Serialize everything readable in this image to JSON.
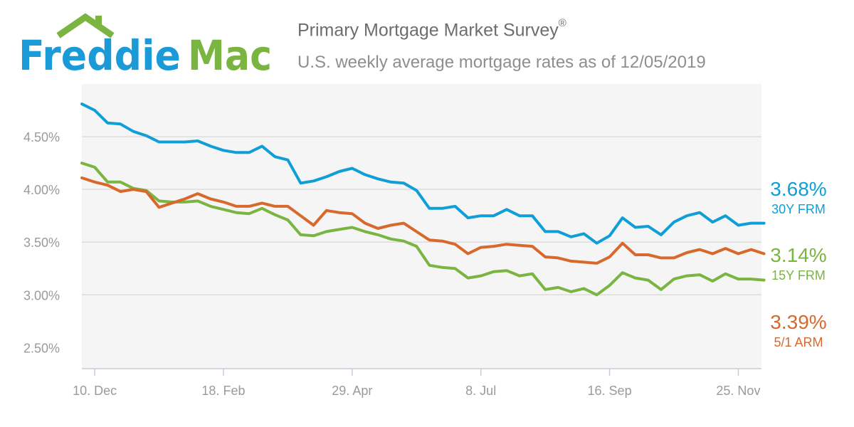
{
  "logo": {
    "text_part1": "Freddie",
    "text_part2": "Mac"
  },
  "header": {
    "title": "Primary Mortgage Market Survey",
    "title_mark": "®",
    "subtitle": "U.S. weekly average mortgage rates as of 12/05/2019"
  },
  "colors": {
    "frm30": "#0f9fd6",
    "frm15": "#7ab441",
    "arm51": "#d8692c",
    "logo_blue": "#1a9ad6",
    "logo_green": "#7ab441"
  },
  "right_labels": [
    {
      "value": "3.68%",
      "name": "30Y FRM",
      "color": "#0f9fd6"
    },
    {
      "value": "3.14%",
      "name": "15Y FRM",
      "color": "#7ab441"
    },
    {
      "value": "3.39%",
      "name": "5/1 ARM",
      "color": "#d8692c"
    }
  ],
  "chart_data": {
    "type": "line",
    "y_ticks": [
      "2.50%",
      "3.00%",
      "3.50%",
      "4.00%",
      "4.50%"
    ],
    "y_tick_values": [
      2.5,
      3.0,
      3.5,
      4.0,
      4.5
    ],
    "ylim": [
      2.3,
      5.0
    ],
    "x_ticks": [
      "10. Dec",
      "18. Feb",
      "29. Apr",
      "8. Jul",
      "16. Sep",
      "25. Nov"
    ],
    "x_tick_weeks": [
      1,
      11,
      21,
      31,
      41,
      51
    ],
    "xlim": [
      0,
      52.8
    ],
    "grid": true,
    "series": [
      {
        "name": "30Y FRM",
        "color": "#0f9fd6",
        "values": [
          4.81,
          4.75,
          4.63,
          4.62,
          4.55,
          4.51,
          4.45,
          4.45,
          4.45,
          4.46,
          4.41,
          4.37,
          4.35,
          4.35,
          4.41,
          4.31,
          4.28,
          4.06,
          4.08,
          4.12,
          4.17,
          4.2,
          4.14,
          4.1,
          4.07,
          4.06,
          3.99,
          3.82,
          3.82,
          3.84,
          3.73,
          3.75,
          3.75,
          3.81,
          3.75,
          3.75,
          3.6,
          3.6,
          3.55,
          3.58,
          3.49,
          3.56,
          3.73,
          3.64,
          3.65,
          3.57,
          3.69,
          3.75,
          3.78,
          3.69,
          3.75,
          3.66,
          3.68,
          3.68
        ]
      },
      {
        "name": "15Y FRM",
        "color": "#7ab441",
        "values": [
          4.25,
          4.21,
          4.07,
          4.07,
          4.01,
          3.99,
          3.89,
          3.88,
          3.88,
          3.89,
          3.84,
          3.81,
          3.78,
          3.77,
          3.82,
          3.76,
          3.71,
          3.57,
          3.56,
          3.6,
          3.62,
          3.64,
          3.6,
          3.57,
          3.53,
          3.51,
          3.46,
          3.28,
          3.26,
          3.25,
          3.16,
          3.18,
          3.22,
          3.23,
          3.18,
          3.2,
          3.05,
          3.07,
          3.03,
          3.06,
          3.0,
          3.09,
          3.21,
          3.16,
          3.14,
          3.05,
          3.15,
          3.18,
          3.19,
          3.13,
          3.2,
          3.15,
          3.15,
          3.14
        ]
      },
      {
        "name": "5/1 ARM",
        "color": "#d8692c",
        "values": [
          4.11,
          4.07,
          4.04,
          3.98,
          4.0,
          3.98,
          3.83,
          3.87,
          3.91,
          3.96,
          3.91,
          3.88,
          3.84,
          3.84,
          3.87,
          3.84,
          3.84,
          3.75,
          3.66,
          3.8,
          3.78,
          3.77,
          3.68,
          3.63,
          3.66,
          3.68,
          3.6,
          3.52,
          3.51,
          3.48,
          3.39,
          3.45,
          3.46,
          3.48,
          3.47,
          3.46,
          3.36,
          3.35,
          3.32,
          3.31,
          3.3,
          3.36,
          3.49,
          3.38,
          3.38,
          3.35,
          3.35,
          3.4,
          3.43,
          3.39,
          3.44,
          3.39,
          3.43,
          3.39
        ]
      }
    ]
  }
}
